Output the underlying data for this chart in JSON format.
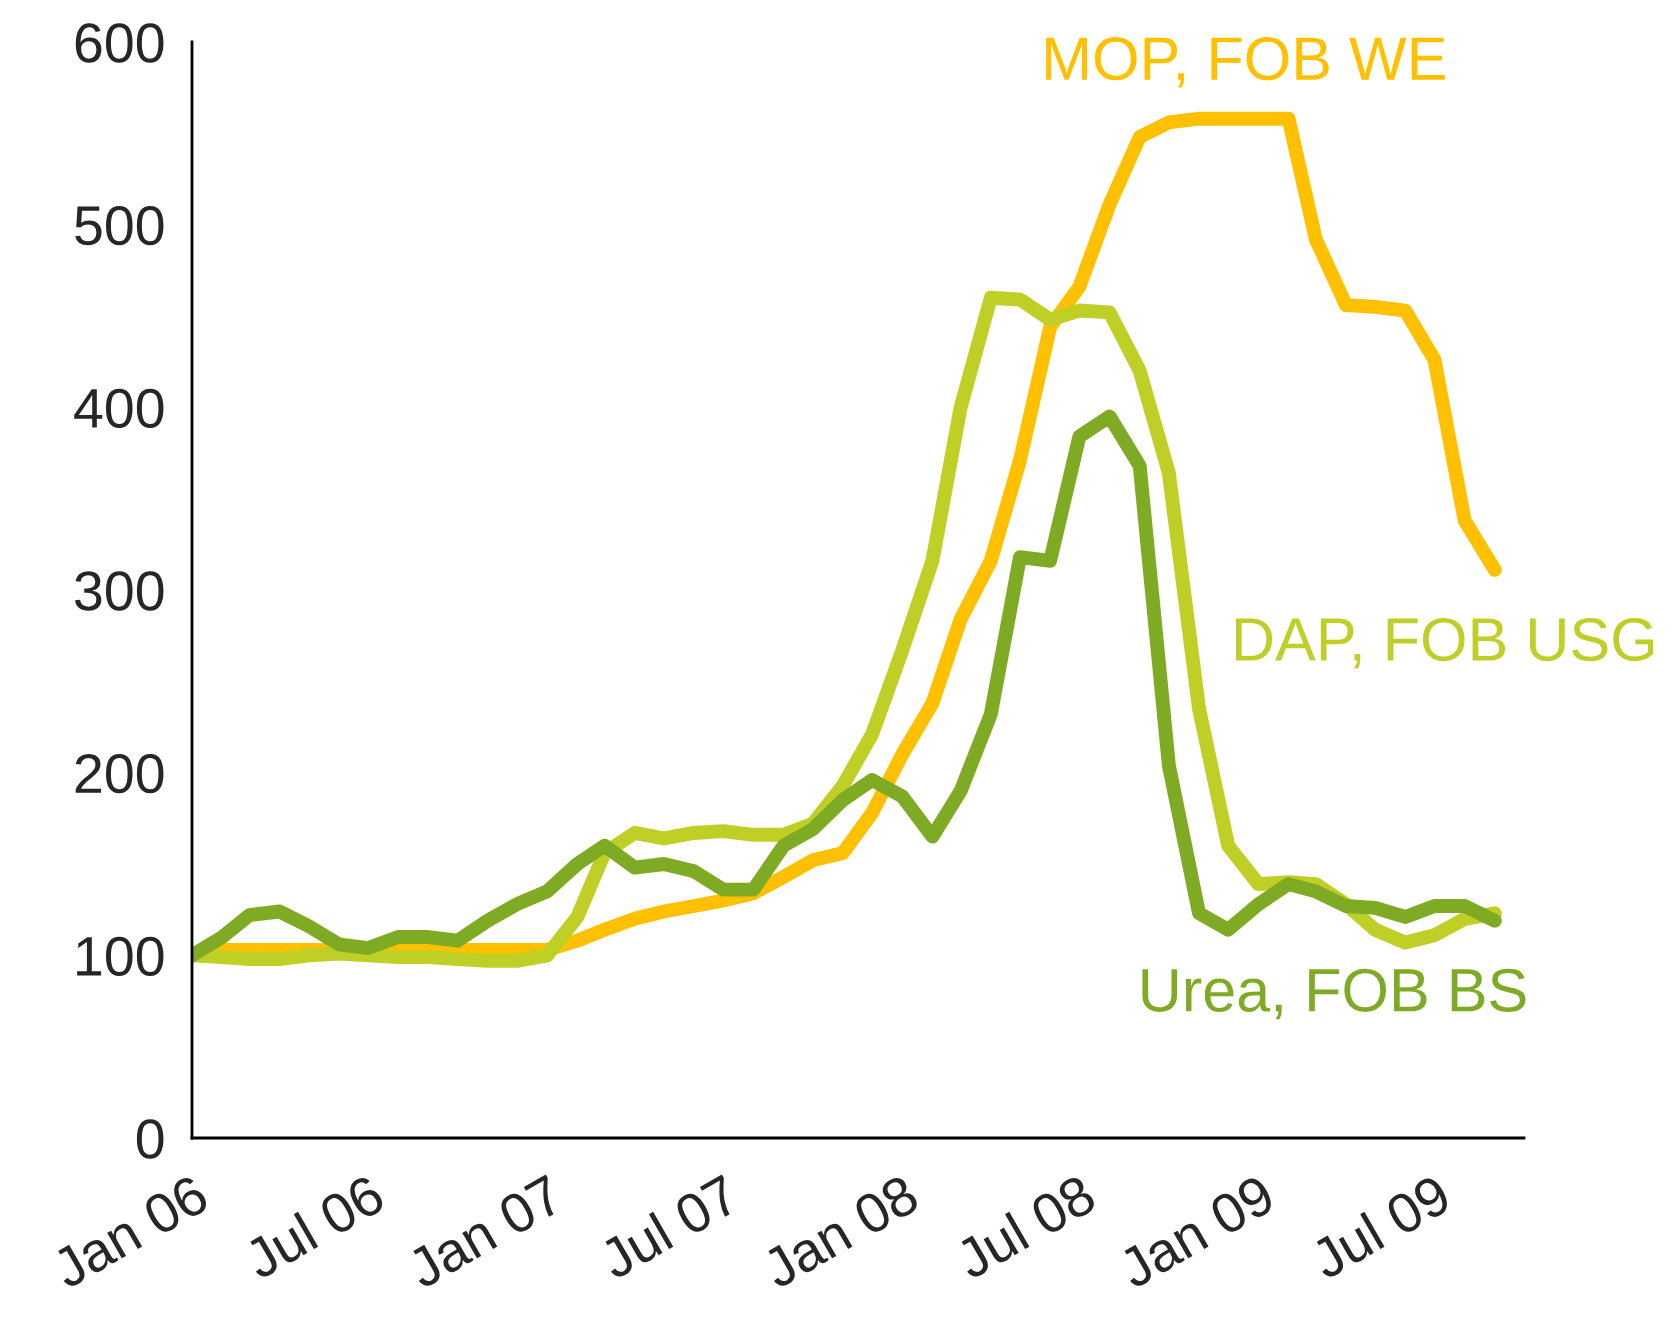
{
  "chart_data": {
    "type": "line",
    "x": [
      "2006-01",
      "2006-02",
      "2006-03",
      "2006-04",
      "2006-05",
      "2006-06",
      "2006-07",
      "2006-08",
      "2006-09",
      "2006-10",
      "2006-11",
      "2006-12",
      "2007-01",
      "2007-02",
      "2007-03",
      "2007-04",
      "2007-05",
      "2007-06",
      "2007-07",
      "2007-08",
      "2007-09",
      "2007-10",
      "2007-11",
      "2007-12",
      "2008-01",
      "2008-02",
      "2008-03",
      "2008-04",
      "2008-05",
      "2008-06",
      "2008-07",
      "2008-08",
      "2008-09",
      "2008-10",
      "2008-11",
      "2008-12",
      "2009-01",
      "2009-02",
      "2009-03",
      "2009-04",
      "2009-05",
      "2009-06",
      "2009-07",
      "2009-08",
      "2009-09"
    ],
    "series": [
      {
        "name": "MOP, FOB WE",
        "color": "#ffc000",
        "values": [
          100,
          103,
          103,
          103,
          103,
          103,
          103,
          103,
          103,
          103,
          103,
          103,
          103,
          108,
          114,
          120,
          124,
          127,
          130,
          134,
          143,
          152,
          156,
          178,
          210,
          238,
          284,
          316,
          371,
          444,
          466,
          511,
          548,
          556,
          558,
          558,
          558,
          558,
          492,
          456,
          455,
          453,
          426,
          338,
          311
        ]
      },
      {
        "name": "DAP, FOB USG",
        "color": "#bfcf26",
        "values": [
          100,
          99,
          98,
          98,
          100,
          101,
          100,
          99,
          99,
          98,
          97,
          97,
          100,
          121,
          156,
          167,
          164,
          167,
          168,
          166,
          166,
          172,
          193,
          221,
          267,
          316,
          400,
          460,
          459,
          448,
          453,
          452,
          420,
          364,
          235,
          160,
          139,
          140,
          139,
          128,
          114,
          107,
          111,
          120,
          123
        ]
      },
      {
        "name": "Urea, FOB BS",
        "color": "#7fab24",
        "values": [
          100,
          110,
          122,
          124,
          116,
          106,
          104,
          110,
          110,
          108,
          119,
          128,
          135,
          150,
          160,
          148,
          150,
          146,
          136,
          136,
          160,
          169,
          185,
          196,
          187,
          165,
          190,
          232,
          318,
          316,
          384,
          395,
          368,
          204,
          123,
          114,
          128,
          139,
          135,
          127,
          126,
          121,
          127,
          127,
          119
        ]
      }
    ],
    "xlim": [
      "2006-01",
      "2009-10"
    ],
    "xticks": [
      {
        "value": "2006-01",
        "label": "Jan 06"
      },
      {
        "value": "2006-07",
        "label": "Jul 06"
      },
      {
        "value": "2007-01",
        "label": "Jan 07"
      },
      {
        "value": "2007-07",
        "label": "Jul 07"
      },
      {
        "value": "2008-01",
        "label": "Jan 08"
      },
      {
        "value": "2008-07",
        "label": "Jul 08"
      },
      {
        "value": "2009-01",
        "label": "Jan 09"
      },
      {
        "value": "2009-07",
        "label": "Jul 09"
      }
    ],
    "ylim": [
      0,
      600
    ],
    "yticks": [
      0,
      100,
      200,
      300,
      400,
      500,
      600
    ],
    "grid": false,
    "legend": false,
    "marker": "none",
    "line_style": "solid"
  }
}
